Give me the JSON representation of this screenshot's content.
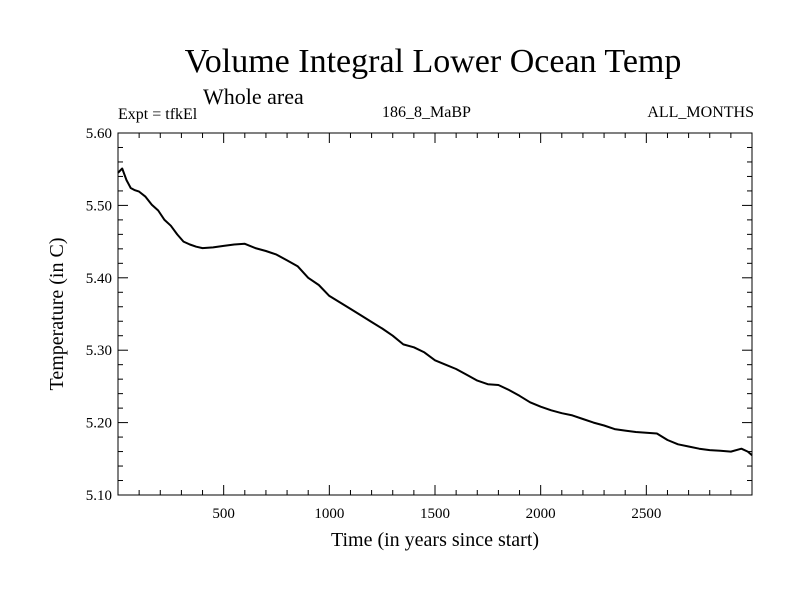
{
  "header": {
    "title": "Volume Integral Lower Ocean Temp",
    "subtitle": "Whole area",
    "expt": "Expt = tfkEl",
    "run": "186_8_MaBP",
    "months": "ALL_MONTHS"
  },
  "chart_data": {
    "type": "line",
    "title": "Volume Integral Lower Ocean Temp",
    "subtitle": "Whole area",
    "xlabel": "Time (in years since start)",
    "ylabel": "Temperature (in C)",
    "xlim": [
      0,
      3000
    ],
    "ylim": [
      5.1,
      5.6
    ],
    "x_ticks": [
      500,
      1000,
      1500,
      2000,
      2500
    ],
    "y_ticks": [
      "5.10",
      "5.20",
      "5.30",
      "5.40",
      "5.50",
      "5.60"
    ],
    "grid": false,
    "series": [
      {
        "color": "#000000",
        "points": [
          [
            0,
            5.545
          ],
          [
            20,
            5.551
          ],
          [
            40,
            5.535
          ],
          [
            60,
            5.524
          ],
          [
            80,
            5.521
          ],
          [
            100,
            5.519
          ],
          [
            130,
            5.512
          ],
          [
            160,
            5.501
          ],
          [
            190,
            5.493
          ],
          [
            220,
            5.48
          ],
          [
            250,
            5.472
          ],
          [
            280,
            5.46
          ],
          [
            310,
            5.45
          ],
          [
            340,
            5.446
          ],
          [
            370,
            5.443
          ],
          [
            400,
            5.441
          ],
          [
            450,
            5.442
          ],
          [
            500,
            5.444
          ],
          [
            550,
            5.446
          ],
          [
            600,
            5.447
          ],
          [
            650,
            5.441
          ],
          [
            700,
            5.437
          ],
          [
            750,
            5.432
          ],
          [
            800,
            5.424
          ],
          [
            850,
            5.416
          ],
          [
            900,
            5.4
          ],
          [
            950,
            5.39
          ],
          [
            1000,
            5.375
          ],
          [
            1050,
            5.366
          ],
          [
            1100,
            5.357
          ],
          [
            1150,
            5.348
          ],
          [
            1200,
            5.339
          ],
          [
            1250,
            5.33
          ],
          [
            1300,
            5.32
          ],
          [
            1350,
            5.308
          ],
          [
            1400,
            5.304
          ],
          [
            1450,
            5.297
          ],
          [
            1500,
            5.286
          ],
          [
            1550,
            5.28
          ],
          [
            1600,
            5.274
          ],
          [
            1650,
            5.266
          ],
          [
            1700,
            5.258
          ],
          [
            1750,
            5.253
          ],
          [
            1800,
            5.252
          ],
          [
            1850,
            5.245
          ],
          [
            1900,
            5.237
          ],
          [
            1950,
            5.228
          ],
          [
            2000,
            5.222
          ],
          [
            2050,
            5.217
          ],
          [
            2100,
            5.213
          ],
          [
            2150,
            5.21
          ],
          [
            2200,
            5.205
          ],
          [
            2250,
            5.2
          ],
          [
            2300,
            5.196
          ],
          [
            2350,
            5.191
          ],
          [
            2400,
            5.189
          ],
          [
            2450,
            5.187
          ],
          [
            2500,
            5.186
          ],
          [
            2550,
            5.185
          ],
          [
            2600,
            5.176
          ],
          [
            2650,
            5.17
          ],
          [
            2700,
            5.167
          ],
          [
            2750,
            5.164
          ],
          [
            2800,
            5.162
          ],
          [
            2850,
            5.161
          ],
          [
            2900,
            5.16
          ],
          [
            2950,
            5.164
          ],
          [
            2980,
            5.16
          ],
          [
            3000,
            5.155
          ]
        ]
      }
    ]
  }
}
